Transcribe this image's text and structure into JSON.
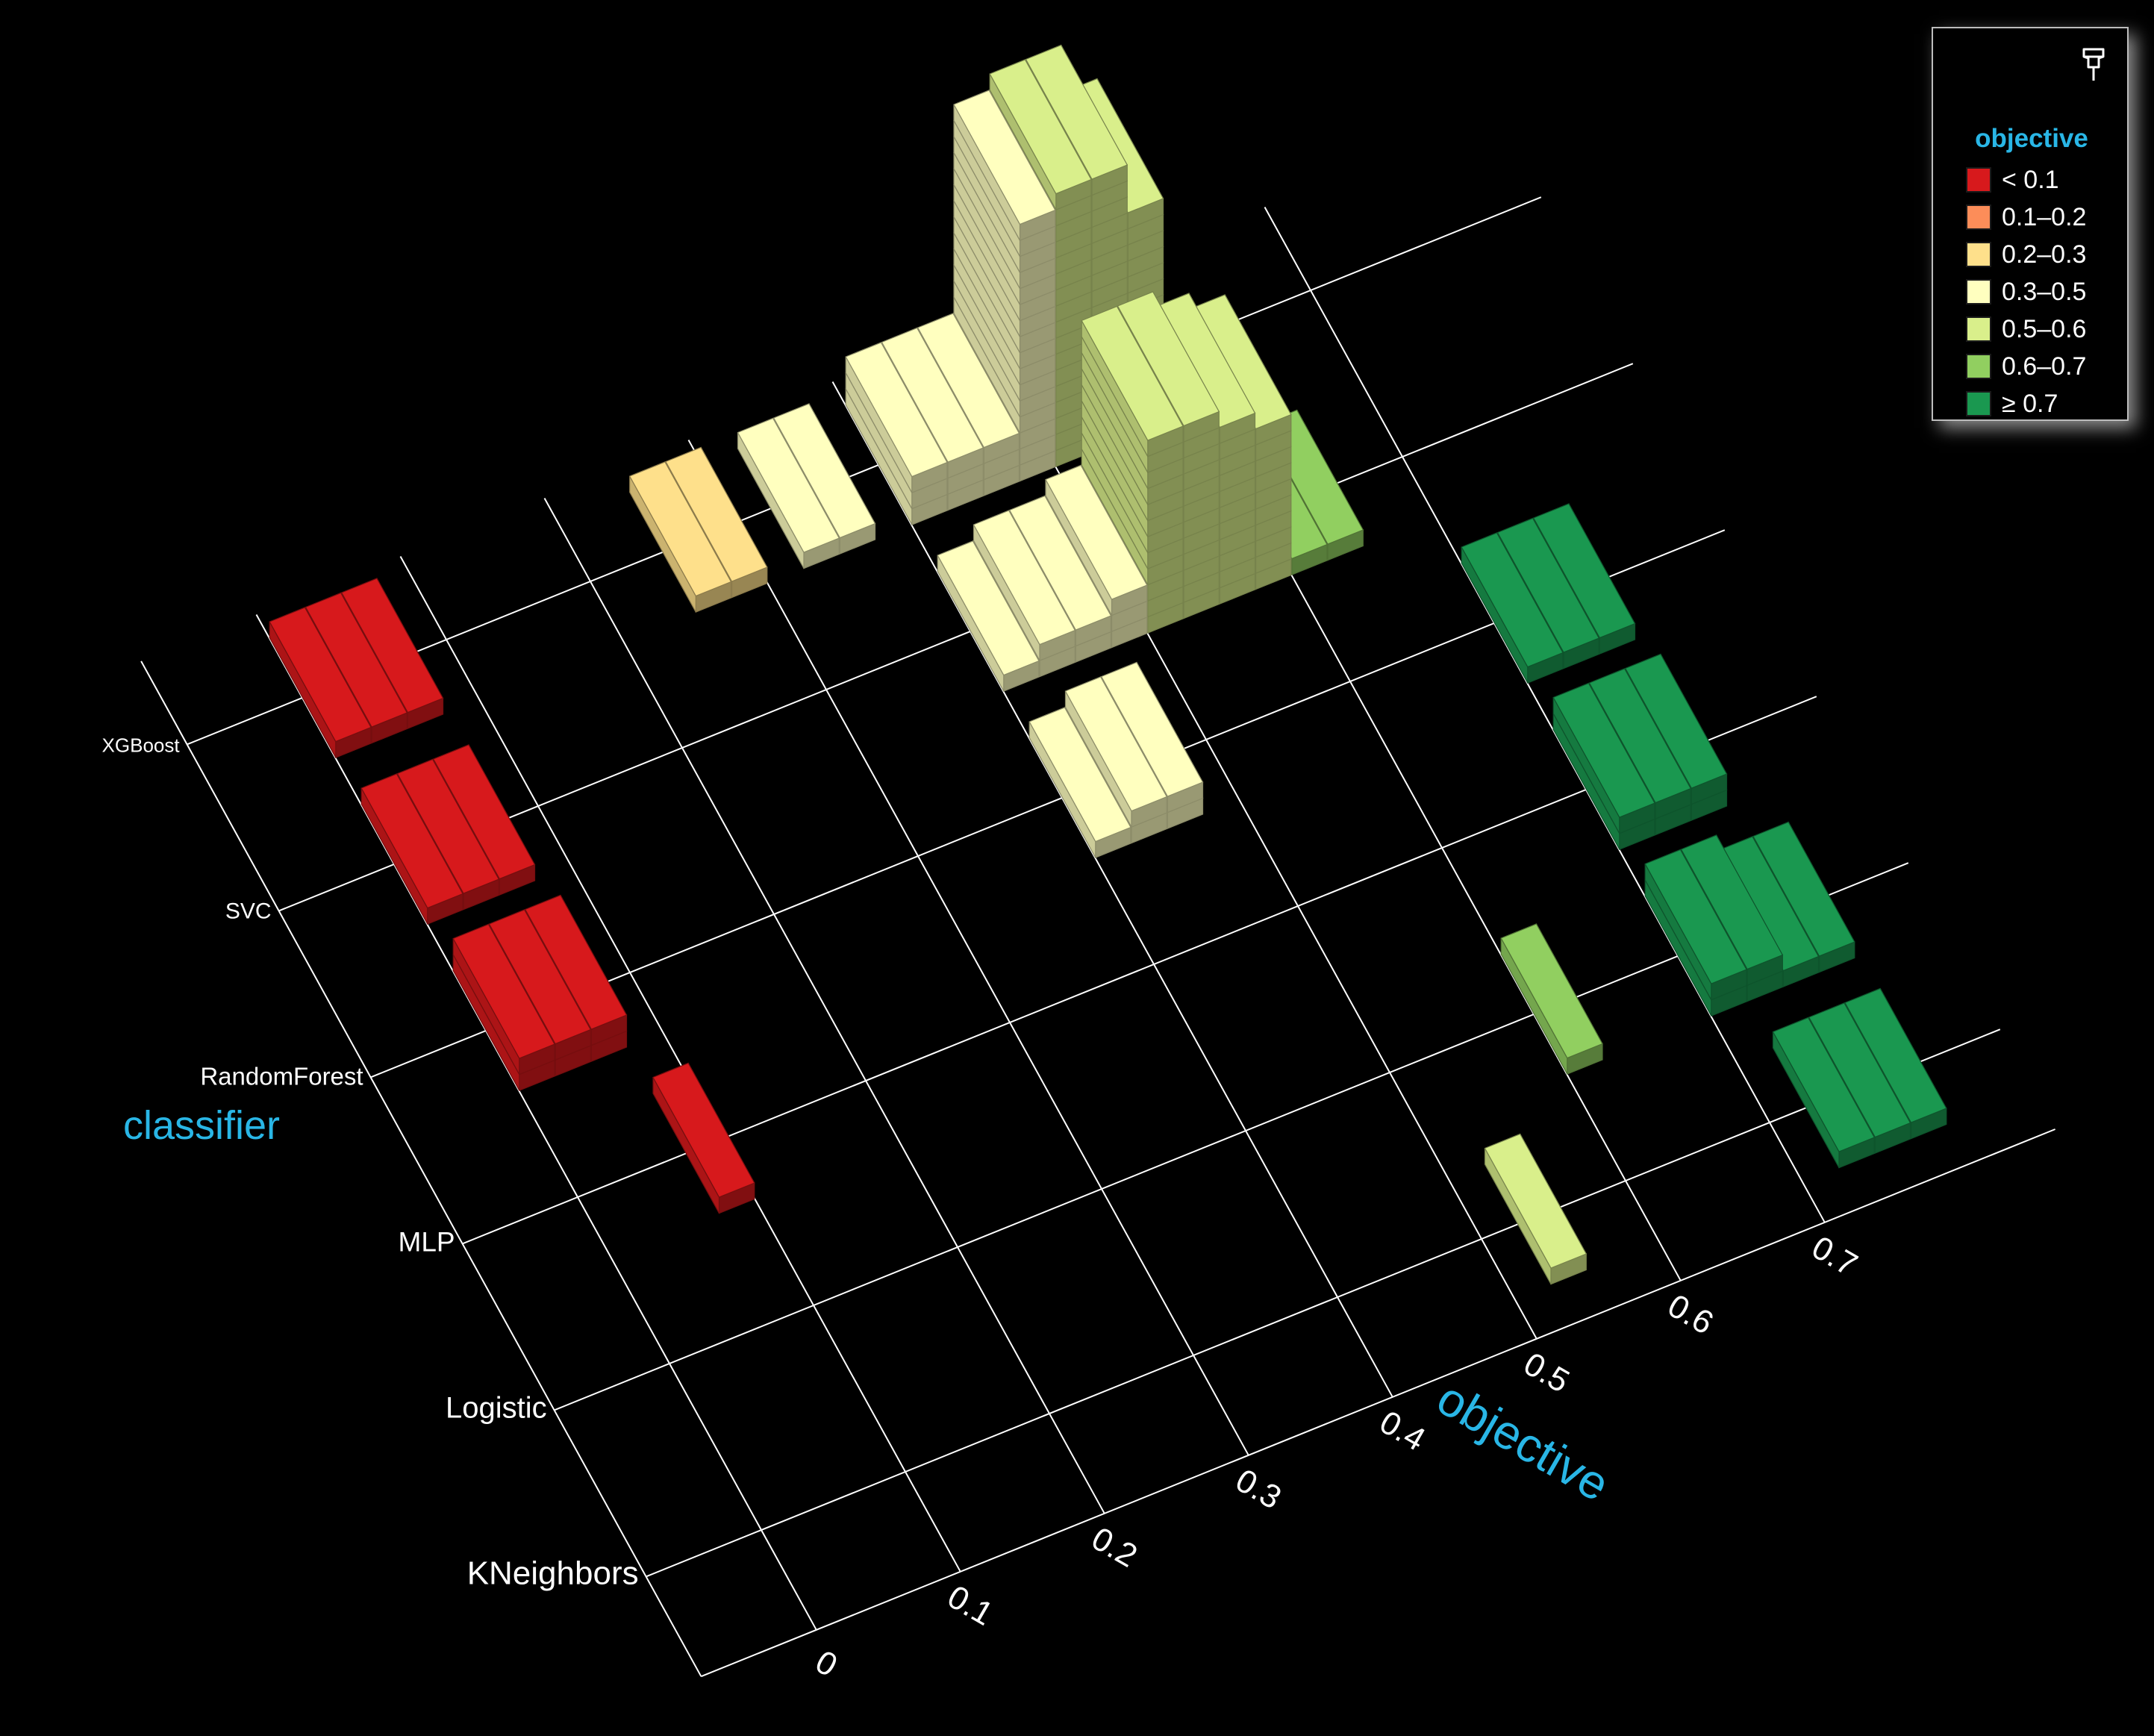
{
  "chart_data": {
    "type": "3d-histogram",
    "xlabel": "objective",
    "ylabel": "classifier",
    "x_ticks": [
      "0",
      "0.1",
      "0.2",
      "0.3",
      "0.4",
      "0.5",
      "0.6",
      "0.7"
    ],
    "y_categories": [
      "KNeighbors",
      "Logistic",
      "MLP",
      "RandomForest",
      "SVC",
      "XGBoost"
    ],
    "bin_width": 0.025,
    "legend": {
      "title": "objective",
      "placement": "top-right",
      "items": [
        {
          "label": "< 0.1",
          "color": "#d7191c"
        },
        {
          "label": "0.1–0.2",
          "color": "#fc8d59"
        },
        {
          "label": "0.2–0.3",
          "color": "#fee08b"
        },
        {
          "label": "0.3–0.5",
          "color": "#ffffbf"
        },
        {
          "label": "0.5–0.6",
          "color": "#d9ef8b"
        },
        {
          "label": "0.6–0.7",
          "color": "#91cf60"
        },
        {
          "label": "≥ 0.7",
          "color": "#1a9850"
        }
      ]
    },
    "bars": [
      {
        "classifier": "XGBoost",
        "objective": 0.0125,
        "count": 1
      },
      {
        "classifier": "XGBoost",
        "objective": 0.0375,
        "count": 1
      },
      {
        "classifier": "XGBoost",
        "objective": 0.0625,
        "count": 1
      },
      {
        "classifier": "XGBoost",
        "objective": 0.2625,
        "count": 1
      },
      {
        "classifier": "XGBoost",
        "objective": 0.2875,
        "count": 1
      },
      {
        "classifier": "XGBoost",
        "objective": 0.3375,
        "count": 1
      },
      {
        "classifier": "XGBoost",
        "objective": 0.3625,
        "count": 1
      },
      {
        "classifier": "XGBoost",
        "objective": 0.4125,
        "count": 3
      },
      {
        "classifier": "XGBoost",
        "objective": 0.4375,
        "count": 3
      },
      {
        "classifier": "XGBoost",
        "objective": 0.4625,
        "count": 3
      },
      {
        "classifier": "XGBoost",
        "objective": 0.4875,
        "count": 16
      },
      {
        "classifier": "XGBoost",
        "objective": 0.5125,
        "count": 17
      },
      {
        "classifier": "XGBoost",
        "objective": 0.5375,
        "count": 17
      },
      {
        "classifier": "XGBoost",
        "objective": 0.5625,
        "count": 14
      },
      {
        "classifier": "SVC",
        "objective": 0.0125,
        "count": 1
      },
      {
        "classifier": "SVC",
        "objective": 0.0375,
        "count": 1
      },
      {
        "classifier": "SVC",
        "objective": 0.0625,
        "count": 1
      },
      {
        "classifier": "SVC",
        "objective": 0.4125,
        "count": 1
      },
      {
        "classifier": "SVC",
        "objective": 0.4375,
        "count": 2
      },
      {
        "classifier": "SVC",
        "objective": 0.4625,
        "count": 2
      },
      {
        "classifier": "SVC",
        "objective": 0.4875,
        "count": 3
      },
      {
        "classifier": "SVC",
        "objective": 0.5125,
        "count": 12
      },
      {
        "classifier": "SVC",
        "objective": 0.5375,
        "count": 12
      },
      {
        "classifier": "SVC",
        "objective": 0.5625,
        "count": 11
      },
      {
        "classifier": "SVC",
        "objective": 0.5875,
        "count": 10
      },
      {
        "classifier": "SVC",
        "objective": 0.6125,
        "count": 1
      },
      {
        "classifier": "SVC",
        "objective": 0.6375,
        "count": 1
      },
      {
        "classifier": "RandomForest",
        "objective": 0.0125,
        "count": 2
      },
      {
        "classifier": "RandomForest",
        "objective": 0.0375,
        "count": 2
      },
      {
        "classifier": "RandomForest",
        "objective": 0.0625,
        "count": 2
      },
      {
        "classifier": "RandomForest",
        "objective": 0.4125,
        "count": 1
      },
      {
        "classifier": "RandomForest",
        "objective": 0.4375,
        "count": 2
      },
      {
        "classifier": "RandomForest",
        "objective": 0.4625,
        "count": 2
      },
      {
        "classifier": "RandomForest",
        "objective": 0.7125,
        "count": 1
      },
      {
        "classifier": "RandomForest",
        "objective": 0.7375,
        "count": 1
      },
      {
        "classifier": "RandomForest",
        "objective": 0.7625,
        "count": 1
      },
      {
        "classifier": "MLP",
        "objective": 0.0875,
        "count": 1
      },
      {
        "classifier": "MLP",
        "objective": 0.7125,
        "count": 2
      },
      {
        "classifier": "MLP",
        "objective": 0.7375,
        "count": 2
      },
      {
        "classifier": "MLP",
        "objective": 0.7625,
        "count": 2
      },
      {
        "classifier": "Logistic",
        "objective": 0.6125,
        "count": 1
      },
      {
        "classifier": "Logistic",
        "objective": 0.7125,
        "count": 2
      },
      {
        "classifier": "Logistic",
        "objective": 0.7375,
        "count": 2
      },
      {
        "classifier": "Logistic",
        "objective": 0.7625,
        "count": 1
      },
      {
        "classifier": "Logistic",
        "objective": 0.7875,
        "count": 1
      },
      {
        "classifier": "KNeighbors",
        "objective": 0.5375,
        "count": 1
      },
      {
        "classifier": "KNeighbors",
        "objective": 0.7375,
        "count": 1
      },
      {
        "classifier": "KNeighbors",
        "objective": 0.7625,
        "count": 1
      },
      {
        "classifier": "KNeighbors",
        "objective": 0.7875,
        "count": 1
      }
    ]
  }
}
